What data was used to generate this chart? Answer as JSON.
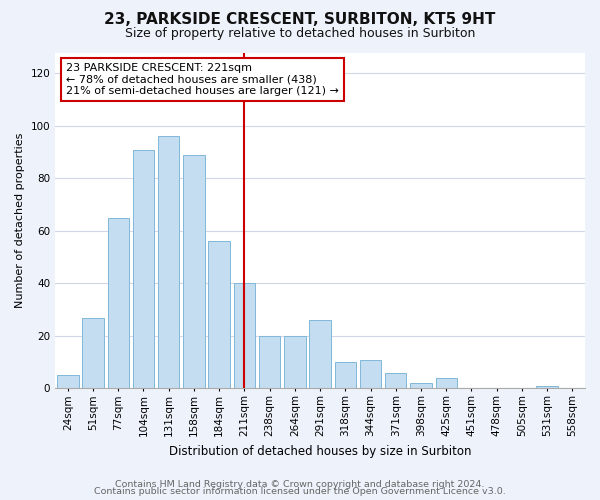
{
  "title": "23, PARKSIDE CRESCENT, SURBITON, KT5 9HT",
  "subtitle": "Size of property relative to detached houses in Surbiton",
  "xlabel": "Distribution of detached houses by size in Surbiton",
  "ylabel": "Number of detached properties",
  "footer_lines": [
    "Contains HM Land Registry data © Crown copyright and database right 2024.",
    "Contains public sector information licensed under the Open Government Licence v3.0."
  ],
  "categories": [
    "24sqm",
    "51sqm",
    "77sqm",
    "104sqm",
    "131sqm",
    "158sqm",
    "184sqm",
    "211sqm",
    "238sqm",
    "264sqm",
    "291sqm",
    "318sqm",
    "344sqm",
    "371sqm",
    "398sqm",
    "425sqm",
    "451sqm",
    "478sqm",
    "505sqm",
    "531sqm",
    "558sqm"
  ],
  "values": [
    5,
    27,
    65,
    91,
    96,
    89,
    56,
    40,
    20,
    20,
    26,
    10,
    11,
    6,
    2,
    4,
    0,
    0,
    0,
    1,
    0
  ],
  "bar_color": "#c5ddf0",
  "bar_edge_color": "#7fb8d8",
  "vline_x_index": 7,
  "vline_color": "#cc0000",
  "annotation_text": "23 PARKSIDE CRESCENT: 221sqm\n← 78% of detached houses are smaller (438)\n21% of semi-detached houses are larger (121) →",
  "annotation_box_facecolor": "#ffffff",
  "annotation_box_edgecolor": "#cc0000",
  "ylim": [
    0,
    128
  ],
  "yticks": [
    0,
    20,
    40,
    60,
    80,
    100,
    120
  ],
  "plot_bg_color": "#ffffff",
  "fig_bg_color": "#eef2fb",
  "title_fontsize": 11,
  "subtitle_fontsize": 9,
  "ylabel_fontsize": 8,
  "xlabel_fontsize": 8.5,
  "tick_fontsize": 7.5,
  "annotation_fontsize": 8,
  "footer_fontsize": 6.8
}
